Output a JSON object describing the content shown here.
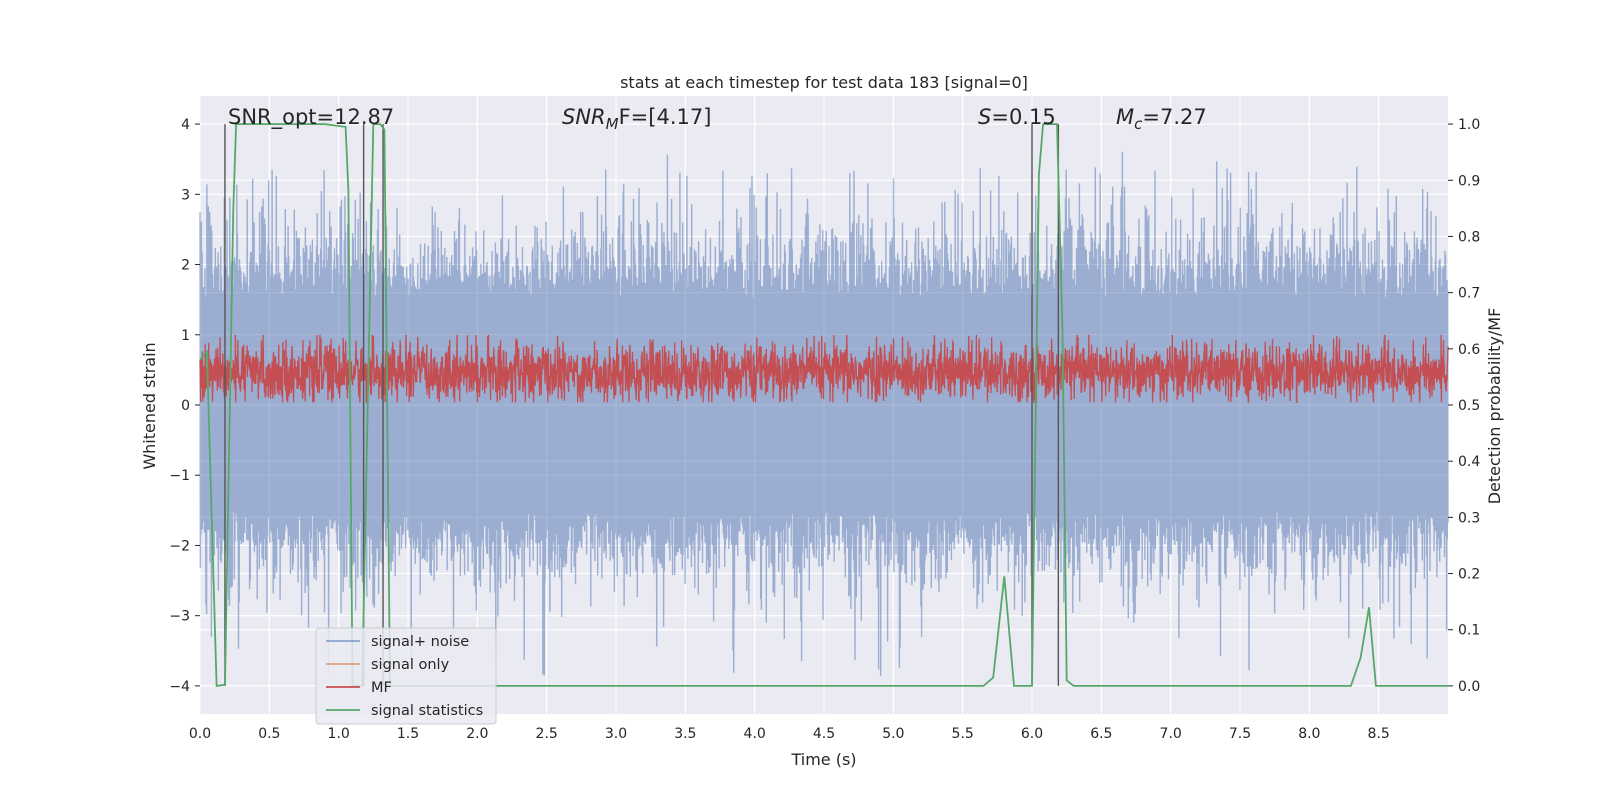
{
  "chart_data": {
    "type": "line",
    "title": "stats at each timestep for test data 183 [signal=0]",
    "xlabel": "Time (s)",
    "ylabel": "Whitened strain",
    "y2label": "Detection probability/MF",
    "xlim": [
      0,
      9.0
    ],
    "ylim": [
      -4.4,
      4.4
    ],
    "y2lim": [
      -0.05,
      1.05
    ],
    "xticks": [
      "0.0",
      "0.5",
      "1.0",
      "1.5",
      "2.0",
      "2.5",
      "3.0",
      "3.5",
      "4.0",
      "4.5",
      "5.0",
      "5.5",
      "6.0",
      "6.5",
      "7.0",
      "7.5",
      "8.0",
      "8.5"
    ],
    "xtick_values": [
      0,
      0.5,
      1.0,
      1.5,
      2.0,
      2.5,
      3.0,
      3.5,
      4.0,
      4.5,
      5.0,
      5.5,
      6.0,
      6.5,
      7.0,
      7.5,
      8.0,
      8.5
    ],
    "yticks": [
      "−4",
      "−3",
      "−2",
      "−1",
      "0",
      "1",
      "2",
      "3",
      "4"
    ],
    "ytick_values": [
      -4,
      -3,
      -2,
      -1,
      0,
      1,
      2,
      3,
      4
    ],
    "y2ticks": [
      "0.0",
      "0.1",
      "0.2",
      "0.3",
      "0.4",
      "0.5",
      "0.6",
      "0.7",
      "0.8",
      "0.9",
      "1.0"
    ],
    "y2tick_values": [
      0.0,
      0.1,
      0.2,
      0.3,
      0.4,
      0.5,
      0.6,
      0.7,
      0.8,
      0.9,
      1.0
    ],
    "grid": true,
    "legend_position": "lower-left",
    "colors": {
      "plot_bg": "#eaeaf2",
      "grid": "#ffffff",
      "noise": "#4c72b0",
      "signal_only": "#dd8452",
      "mf": "#c44e52",
      "stats": "#55a868",
      "vline": "#555555"
    },
    "annotations": {
      "snr_opt": "SNR_opt=12.87",
      "snr_mf_base": "SNR",
      "snr_mf_sub": "M",
      "snr_mf_rest": "F=[4.17]",
      "s_var": "S",
      "s_rest": "=0.15",
      "mc_base": "M",
      "mc_sub": "c",
      "mc_rest": "=7.27"
    },
    "series": [
      {
        "name": "signal+ noise",
        "axis": "left",
        "noise_envelope": {
          "positive_peaks_typical": [
            1.5,
            3.4
          ],
          "negative_peaks_typical": [
            -1.5,
            -3.9
          ],
          "sample_count": 3600
        }
      },
      {
        "name": "signal only",
        "axis": "left",
        "values": []
      },
      {
        "name": "MF",
        "axis": "right",
        "band": [
          0.515,
          0.6
        ],
        "peaks_max": 0.625,
        "sample_count": 3600
      },
      {
        "name": "signal statistics",
        "axis": "right",
        "x": [
          0.0,
          0.05,
          0.12,
          0.18,
          0.24,
          0.26,
          0.3,
          0.9,
          1.05,
          1.07,
          1.1,
          1.17,
          1.2,
          1.25,
          1.3,
          1.33,
          1.37,
          1.4,
          5.65,
          5.72,
          5.8,
          5.87,
          6.0,
          6.05,
          6.08,
          6.13,
          6.18,
          6.22,
          6.25,
          6.3,
          8.3,
          8.37,
          8.43,
          8.48,
          9.0
        ],
        "values": [
          0.58,
          0.595,
          0.0,
          0.002,
          0.85,
          1.0,
          1.0,
          1.0,
          0.995,
          0.88,
          0.0,
          0.0,
          0.38,
          1.0,
          1.0,
          0.99,
          0.0,
          0.0,
          0.0,
          0.015,
          0.195,
          0.0,
          0.0,
          0.91,
          1.0,
          1.0,
          1.0,
          0.63,
          0.01,
          0.0,
          0.0,
          0.05,
          0.14,
          0.0,
          0.0
        ]
      }
    ],
    "vlines_x": [
      0.18,
      1.18,
      1.32,
      6.0,
      6.19
    ],
    "legend": [
      "signal+ noise",
      "signal only",
      "MF",
      "signal statistics"
    ]
  }
}
